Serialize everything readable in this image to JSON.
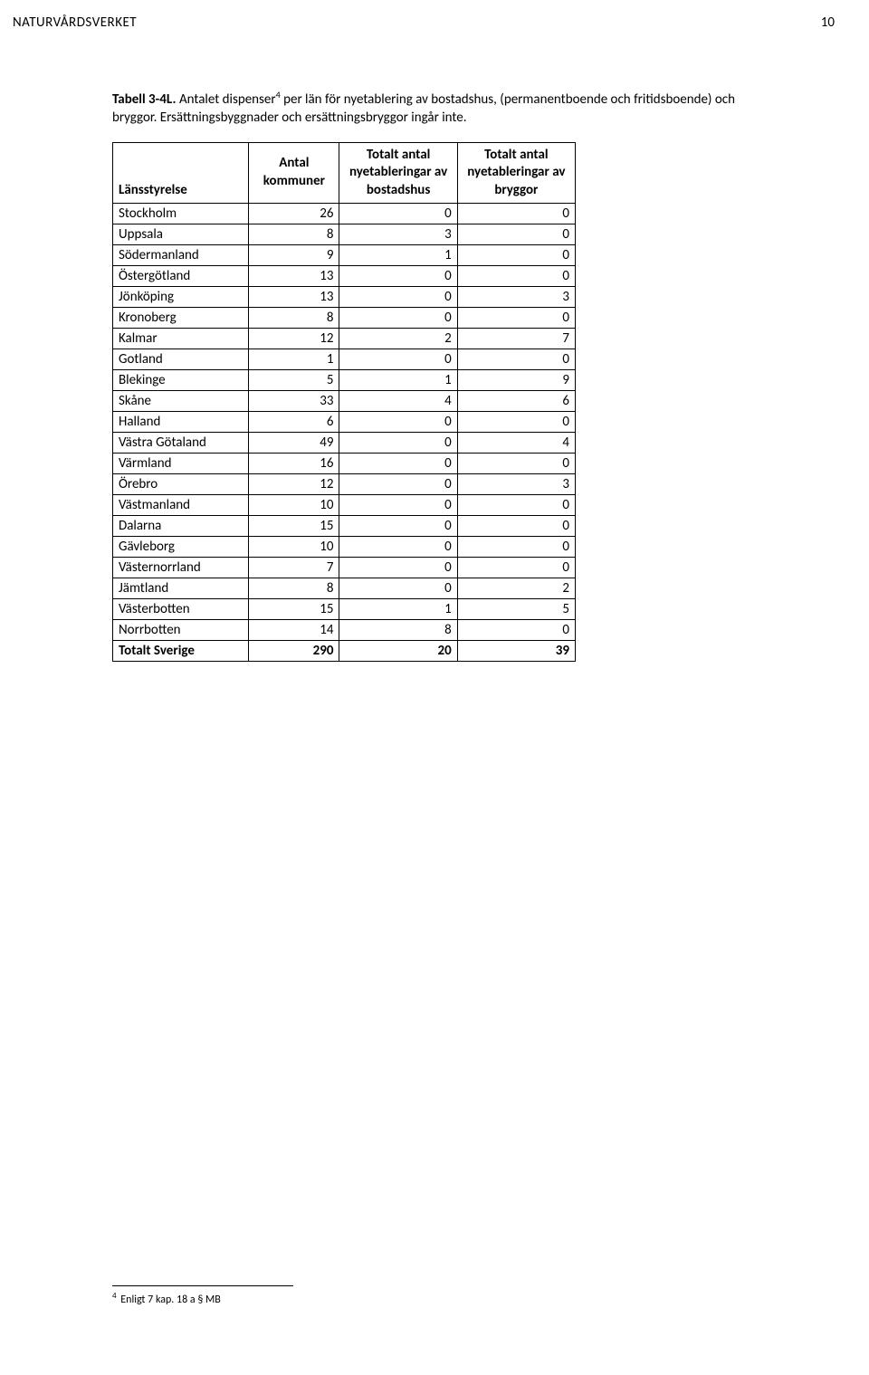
{
  "header": "NATURVÅRDSVERKET",
  "page_number": "10",
  "title": {
    "bold_prefix": "Tabell 3-4L.",
    "body": " Antalet dispenser",
    "sup": "4",
    "rest": " per län för nyetablering av bostadshus, (permanentboende och fritidsboende) och bryggor. Ersättningsbyggnader och ersättningsbryggor ingår inte."
  },
  "table": {
    "columns": [
      {
        "key": "lan",
        "label": "Länsstyrelse",
        "class": "col-lan"
      },
      {
        "key": "kommuner",
        "label": "Antal kommuner",
        "class": "col-kom"
      },
      {
        "key": "bostadshus",
        "label": "Totalt antal nyetableringar av bostadshus",
        "class": "col-bost"
      },
      {
        "key": "bryggor",
        "label": "Totalt antal nyetableringar av bryggor",
        "class": "col-bryg"
      }
    ],
    "rows": [
      {
        "lan": "Stockholm",
        "kommuner": 26,
        "bostadshus": 0,
        "bryggor": 0
      },
      {
        "lan": "Uppsala",
        "kommuner": 8,
        "bostadshus": 3,
        "bryggor": 0
      },
      {
        "lan": "Södermanland",
        "kommuner": 9,
        "bostadshus": 1,
        "bryggor": 0
      },
      {
        "lan": "Östergötland",
        "kommuner": 13,
        "bostadshus": 0,
        "bryggor": 0
      },
      {
        "lan": "Jönköping",
        "kommuner": 13,
        "bostadshus": 0,
        "bryggor": 3
      },
      {
        "lan": "Kronoberg",
        "kommuner": 8,
        "bostadshus": 0,
        "bryggor": 0
      },
      {
        "lan": "Kalmar",
        "kommuner": 12,
        "bostadshus": 2,
        "bryggor": 7
      },
      {
        "lan": "Gotland",
        "kommuner": 1,
        "bostadshus": 0,
        "bryggor": 0
      },
      {
        "lan": "Blekinge",
        "kommuner": 5,
        "bostadshus": 1,
        "bryggor": 9
      },
      {
        "lan": "Skåne",
        "kommuner": 33,
        "bostadshus": 4,
        "bryggor": 6
      },
      {
        "lan": "Halland",
        "kommuner": 6,
        "bostadshus": 0,
        "bryggor": 0
      },
      {
        "lan": "Västra Götaland",
        "kommuner": 49,
        "bostadshus": 0,
        "bryggor": 4
      },
      {
        "lan": "Värmland",
        "kommuner": 16,
        "bostadshus": 0,
        "bryggor": 0
      },
      {
        "lan": "Örebro",
        "kommuner": 12,
        "bostadshus": 0,
        "bryggor": 3
      },
      {
        "lan": "Västmanland",
        "kommuner": 10,
        "bostadshus": 0,
        "bryggor": 0
      },
      {
        "lan": "Dalarna",
        "kommuner": 15,
        "bostadshus": 0,
        "bryggor": 0
      },
      {
        "lan": "Gävleborg",
        "kommuner": 10,
        "bostadshus": 0,
        "bryggor": 0
      },
      {
        "lan": "Västernorrland",
        "kommuner": 7,
        "bostadshus": 0,
        "bryggor": 0
      },
      {
        "lan": "Jämtland",
        "kommuner": 8,
        "bostadshus": 0,
        "bryggor": 2
      },
      {
        "lan": "Västerbotten",
        "kommuner": 15,
        "bostadshus": 1,
        "bryggor": 5
      },
      {
        "lan": "Norrbotten",
        "kommuner": 14,
        "bostadshus": 8,
        "bryggor": 0
      }
    ],
    "total": {
      "lan": "Totalt Sverige",
      "kommuner": 290,
      "bostadshus": 20,
      "bryggor": 39
    }
  },
  "footnote": {
    "num": "4",
    "text": " Enligt 7 kap. 18 a § MB"
  }
}
